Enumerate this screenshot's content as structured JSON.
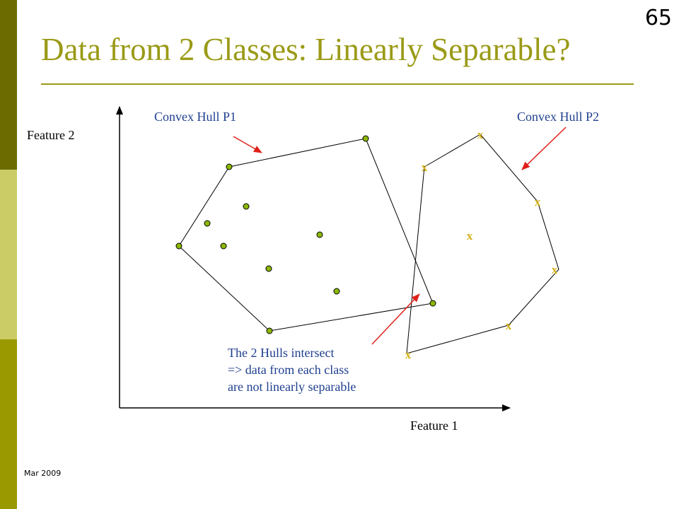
{
  "slide": {
    "number": "65",
    "title": "Data from 2 Classes: Linearly Separable?",
    "footer_date": "Mar 2009"
  },
  "colors": {
    "title": "#9a9a17",
    "rule": "#9a9a17",
    "sidebar_top": "#6b6b00",
    "sidebar_mid": "#cccc66",
    "sidebar_bottom": "#9a9a00",
    "point_fill": "#8cb800",
    "x_marker": "#d4b21a",
    "arrow": "#e0201a",
    "label_blue": "#1f3f8f"
  },
  "diagram": {
    "y_axis_label": "Feature 2",
    "x_axis_label": "Feature 1",
    "hull_p1_label": "Convex Hull P1",
    "hull_p2_label": "Convex Hull P2",
    "annotation_lines": [
      "The 2 Hulls intersect",
      "=> data from each class",
      "are not linearly separable"
    ],
    "class1_marker": "filled-circle",
    "class2_marker": "x",
    "class2_marker_text": "x"
  }
}
